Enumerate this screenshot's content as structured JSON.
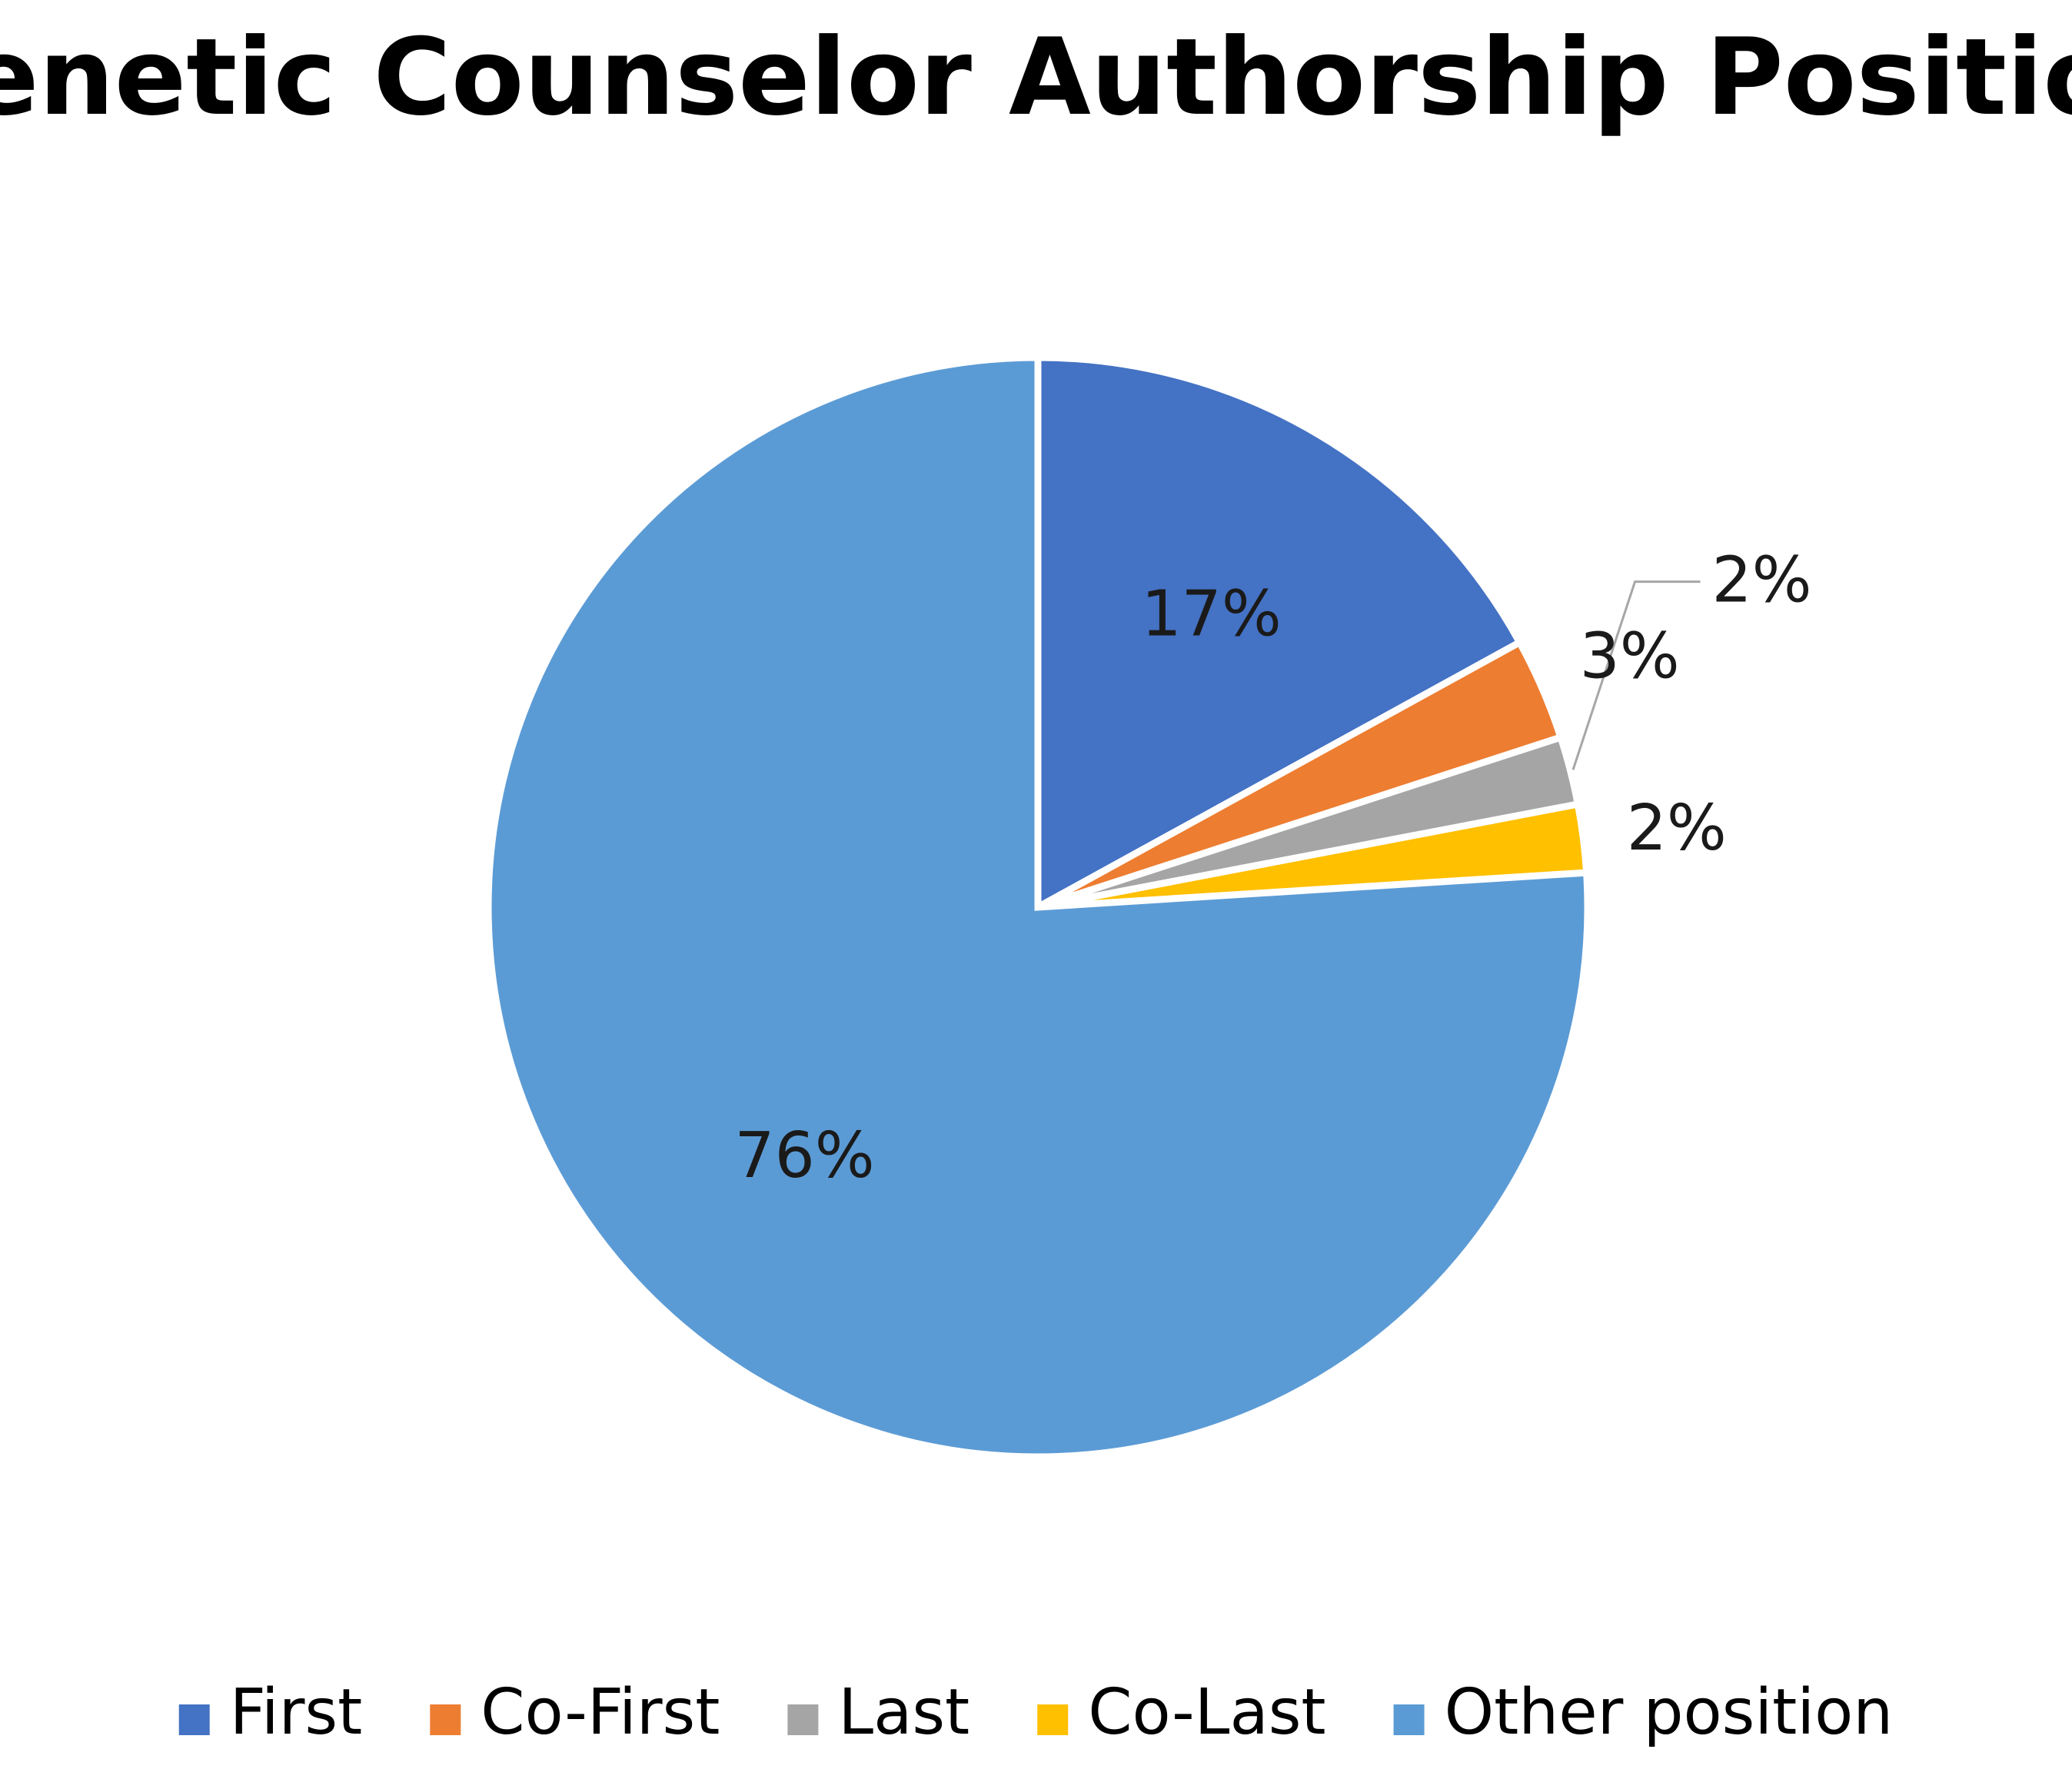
{
  "chart_data": {
    "type": "pie",
    "title": "Genetic Counselor Authorship Position",
    "start_angle_deg": 0,
    "direction": "clockwise",
    "legend_position": "bottom",
    "slices": [
      {
        "name": "First",
        "value": 17,
        "label": "17%",
        "color": "#4472C4",
        "label_placement": "inside"
      },
      {
        "name": "Co-First",
        "value": 3,
        "label": "3%",
        "color": "#ED7D31",
        "label_placement": "outside"
      },
      {
        "name": "Last",
        "value": 2,
        "label": "2%",
        "color": "#A5A5A5",
        "label_placement": "outside-leader"
      },
      {
        "name": "Co-Last",
        "value": 2,
        "label": "2%",
        "color": "#FFC000",
        "label_placement": "outside"
      },
      {
        "name": "Other position",
        "value": 76,
        "label": "76%",
        "color": "#5B9BD5",
        "label_placement": "inside"
      }
    ]
  }
}
